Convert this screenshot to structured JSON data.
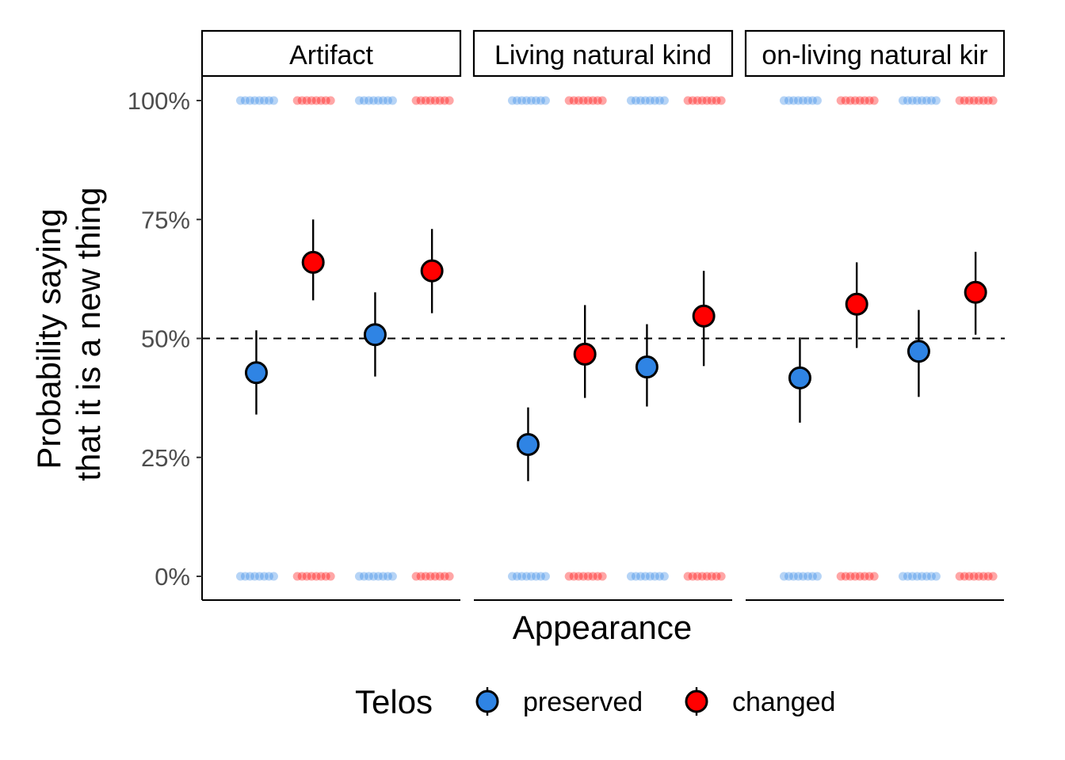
{
  "chart_data": {
    "type": "scatter",
    "title": "",
    "xlabel": "Appearance",
    "ylabel_lines": [
      "Probability saying",
      "that it is a new thing"
    ],
    "ylim": [
      0,
      1
    ],
    "y_ticks": [
      {
        "value": 0,
        "label": "0%"
      },
      {
        "value": 0.25,
        "label": "25%"
      },
      {
        "value": 0.5,
        "label": "50%"
      },
      {
        "value": 0.75,
        "label": "75%"
      },
      {
        "value": 1,
        "label": "100%"
      }
    ],
    "reference_line": {
      "value": 0.5,
      "style": "dashed"
    },
    "grid": false,
    "legend": {
      "title": "Telos",
      "position": "bottom",
      "entries": [
        {
          "name": "preserved",
          "color": "#2f84e4"
        },
        {
          "name": "changed",
          "color": "#ff0000"
        }
      ]
    },
    "x_groups_per_panel": 2,
    "panels": [
      {
        "label": "Artifact",
        "estimates": [
          {
            "group": 1,
            "telos": "preserved",
            "mean": 0.428,
            "lower": 0.34,
            "upper": 0.517
          },
          {
            "group": 1,
            "telos": "changed",
            "mean": 0.66,
            "lower": 0.58,
            "upper": 0.75
          },
          {
            "group": 2,
            "telos": "preserved",
            "mean": 0.508,
            "lower": 0.42,
            "upper": 0.597
          },
          {
            "group": 2,
            "telos": "changed",
            "mean": 0.642,
            "lower": 0.553,
            "upper": 0.73
          }
        ]
      },
      {
        "label": "Living natural kind",
        "estimates": [
          {
            "group": 1,
            "telos": "preserved",
            "mean": 0.277,
            "lower": 0.2,
            "upper": 0.355
          },
          {
            "group": 1,
            "telos": "changed",
            "mean": 0.467,
            "lower": 0.375,
            "upper": 0.57
          },
          {
            "group": 2,
            "telos": "preserved",
            "mean": 0.44,
            "lower": 0.357,
            "upper": 0.53
          },
          {
            "group": 2,
            "telos": "changed",
            "mean": 0.547,
            "lower": 0.442,
            "upper": 0.642
          }
        ]
      },
      {
        "label": "on-living natural kir",
        "estimates": [
          {
            "group": 1,
            "telos": "preserved",
            "mean": 0.417,
            "lower": 0.323,
            "upper": 0.502
          },
          {
            "group": 1,
            "telos": "changed",
            "mean": 0.572,
            "lower": 0.48,
            "upper": 0.66
          },
          {
            "group": 2,
            "telos": "preserved",
            "mean": 0.473,
            "lower": 0.377,
            "upper": 0.56
          },
          {
            "group": 2,
            "telos": "changed",
            "mean": 0.597,
            "lower": 0.508,
            "upper": 0.682
          }
        ]
      }
    ],
    "raw_response_dots": {
      "values": [
        0,
        1
      ],
      "note_alpha": 0.35
    }
  }
}
